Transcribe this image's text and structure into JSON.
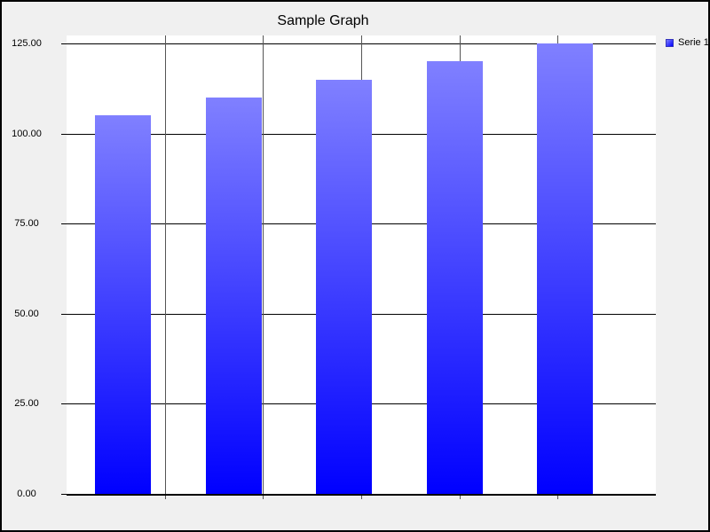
{
  "window": {
    "background_color": "#f0f0f0",
    "border_color": "#000000",
    "plot_background": "#ffffff"
  },
  "chart": {
    "title": "Sample Graph",
    "y_axis": {
      "ticks": [
        {
          "label": "0.00",
          "value": 0
        },
        {
          "label": "25.00",
          "value": 25
        },
        {
          "label": "50.00",
          "value": 50
        },
        {
          "label": "75.00",
          "value": 75
        },
        {
          "label": "100.00",
          "value": 100
        },
        {
          "label": "125.00",
          "value": 125
        }
      ]
    },
    "legend": {
      "position": "top-right"
    }
  },
  "chart_data": {
    "type": "bar",
    "title": "Sample Graph",
    "categories": [
      "",
      "",
      "",
      "",
      ""
    ],
    "series": [
      {
        "name": "Serie 1",
        "values": [
          105,
          110,
          115,
          120,
          125
        ]
      }
    ],
    "xlabel": "",
    "ylabel": "",
    "ylim": [
      0,
      127.5
    ],
    "y_tick_interval": 25,
    "x_divisions": 6,
    "grid": true,
    "legend_position": "top-right",
    "bar_color_top": "#8080ff",
    "bar_color_bottom": "#0000ff",
    "gridline_color_horizontal": "#000000",
    "gridline_color_vertical": "#555555",
    "axis_color": "#000000"
  }
}
